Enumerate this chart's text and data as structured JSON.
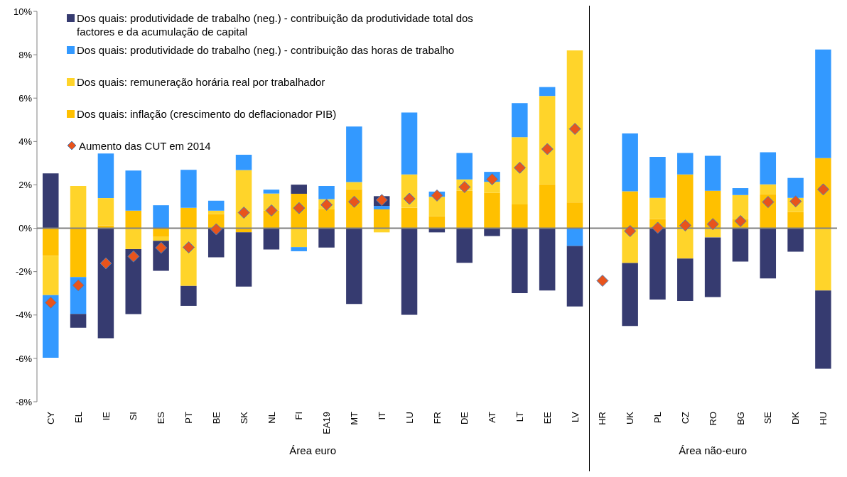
{
  "chart_data": {
    "type": "bar",
    "stacked": true,
    "legend": "top left",
    "categories": [
      "CY",
      "EL",
      "IE",
      "SI",
      "ES",
      "PT",
      "BE",
      "SK",
      "NL",
      "FI",
      "EA19",
      "MT",
      "IT",
      "LU",
      "FR",
      "DE",
      "AT",
      "LT",
      "EE",
      "LV",
      "HR",
      "UK",
      "PL",
      "CZ",
      "RO",
      "BG",
      "SE",
      "DK",
      "HU"
    ],
    "ylim": [
      -8,
      10
    ],
    "yticks": [
      {
        "value": -8,
        "label": "-8%"
      },
      {
        "value": -6,
        "label": "-6%"
      },
      {
        "value": -4,
        "label": "-4%"
      },
      {
        "value": -2,
        "label": "-2%"
      },
      {
        "value": 0,
        "label": "0%"
      },
      {
        "value": 2,
        "label": "2%"
      },
      {
        "value": 4,
        "label": "4%"
      },
      {
        "value": 6,
        "label": "6%"
      },
      {
        "value": 8,
        "label": "8%"
      },
      {
        "value": 10,
        "label": "10%"
      }
    ],
    "annotations": [
      "Área euro",
      "Área não-euro"
    ],
    "ref_lines": [
      {
        "axis": "x",
        "value": "HR",
        "color": "#000000",
        "line_style": "solid"
      }
    ],
    "series": [
      {
        "name": "Dos quais: inflação (crescimento do deflacionador PIB)",
        "color": "#ffc000",
        "values": [
          -1.27,
          -2.25,
          0.13,
          0.81,
          -0.4,
          0.94,
          0.65,
          -0.19,
          0.81,
          1.59,
          0.87,
          1.8,
          0.87,
          0.94,
          0.55,
          1.73,
          1.63,
          1.1,
          2.02,
          1.19,
          null,
          1.7,
          0.42,
          2.48,
          1.73,
          0.41,
          1.56,
          0.75,
          3.23
        ]
      },
      {
        "name": "Dos quais: remuneração horária real por trabalhador",
        "color": "#ffd42a",
        "values": [
          -1.81,
          1.95,
          1.26,
          -0.96,
          -0.18,
          -2.66,
          0.16,
          2.68,
          0.79,
          -0.87,
          0.47,
          0.33,
          -0.19,
          1.54,
          0.9,
          0.52,
          0.51,
          3.1,
          4.08,
          7.01,
          null,
          -1.6,
          0.98,
          -1.4,
          -0.42,
          1.12,
          0.46,
          0.65,
          -2.87
        ]
      },
      {
        "name": "Dos quais: produtividade do trabalho (neg.) - contribuição das horas de trabalho",
        "color": "#3399ff",
        "values": [
          -2.89,
          -1.7,
          2.06,
          1.85,
          1.06,
          1.75,
          0.46,
          0.71,
          0.18,
          -0.19,
          0.61,
          2.56,
          0.16,
          2.86,
          0.24,
          1.22,
          0.46,
          1.57,
          0.41,
          -0.82,
          null,
          2.67,
          1.89,
          0.99,
          1.61,
          0.32,
          1.48,
          0.92,
          5.01
        ]
      },
      {
        "name": "Dos quais: produtividade de trabalho (neg.) - contribuição da produtividade total dos factores e da acumulação de capital",
        "color": "#363b70",
        "values": [
          2.53,
          -0.64,
          -5.07,
          -3.0,
          -1.38,
          -0.92,
          -1.34,
          -2.5,
          -0.98,
          0.42,
          -0.89,
          -3.49,
          0.45,
          -3.99,
          -0.19,
          -1.59,
          -0.36,
          -2.99,
          -2.87,
          -2.79,
          null,
          -2.91,
          -3.29,
          -1.95,
          -2.75,
          -1.54,
          -2.31,
          -1.08,
          -3.61
        ]
      },
      {
        "name": "Aumento das CUT em 2014",
        "type": "scatter",
        "marker": "diamond",
        "color": "#e8541c",
        "values": [
          -3.43,
          -2.63,
          -1.62,
          -1.3,
          -0.9,
          -0.88,
          -0.05,
          0.72,
          0.82,
          0.93,
          1.08,
          1.22,
          1.3,
          1.36,
          1.51,
          1.9,
          2.26,
          2.79,
          3.65,
          4.58,
          -2.42,
          -0.13,
          0.02,
          0.13,
          0.19,
          0.33,
          1.21,
          1.24,
          1.79
        ]
      }
    ]
  }
}
